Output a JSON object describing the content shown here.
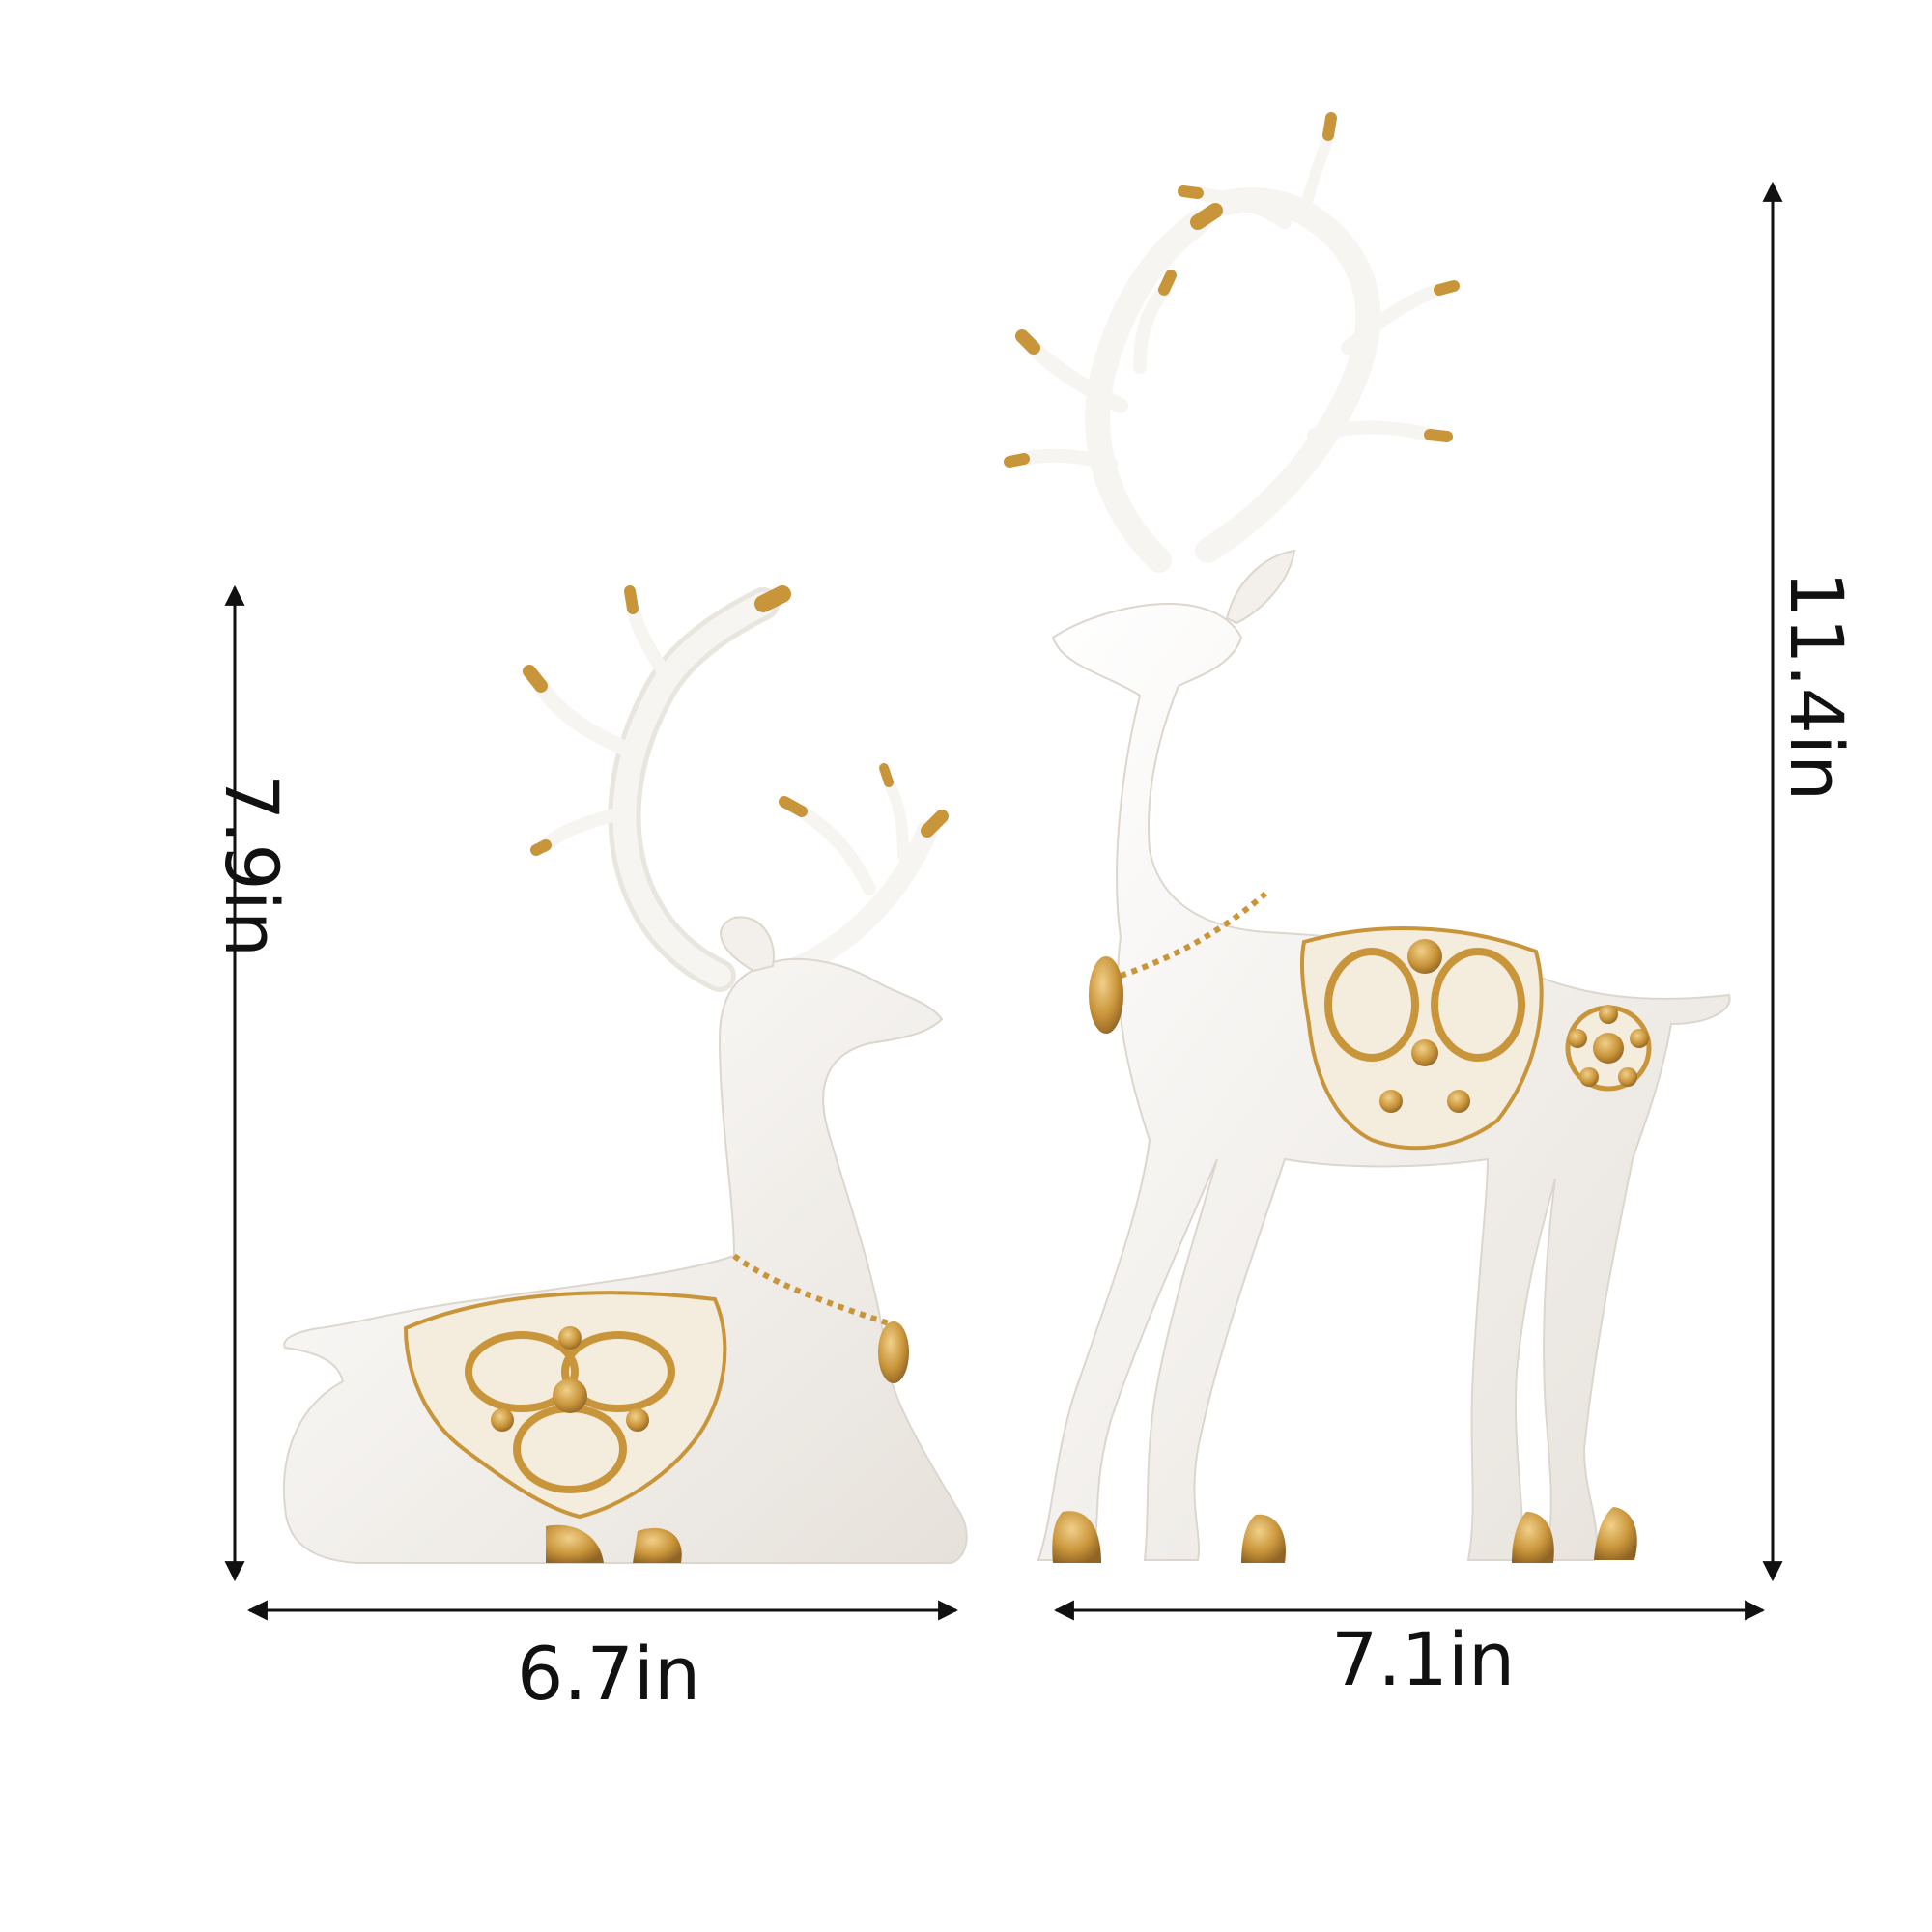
{
  "image": {
    "description_type": "product dimension diagram",
    "background_color": "#ffffff"
  },
  "dimensions": {
    "lying_deer": {
      "width": "6.7in",
      "height": "7.9in"
    },
    "standing_deer": {
      "width": "7.1in",
      "height": "11.4in"
    }
  },
  "colors": {
    "figurine_white": "#f6f4f1",
    "figurine_shadow": "#e2ddd6",
    "gold": "#c9953a",
    "gold_light": "#e8c070",
    "arrow": "#111111"
  }
}
